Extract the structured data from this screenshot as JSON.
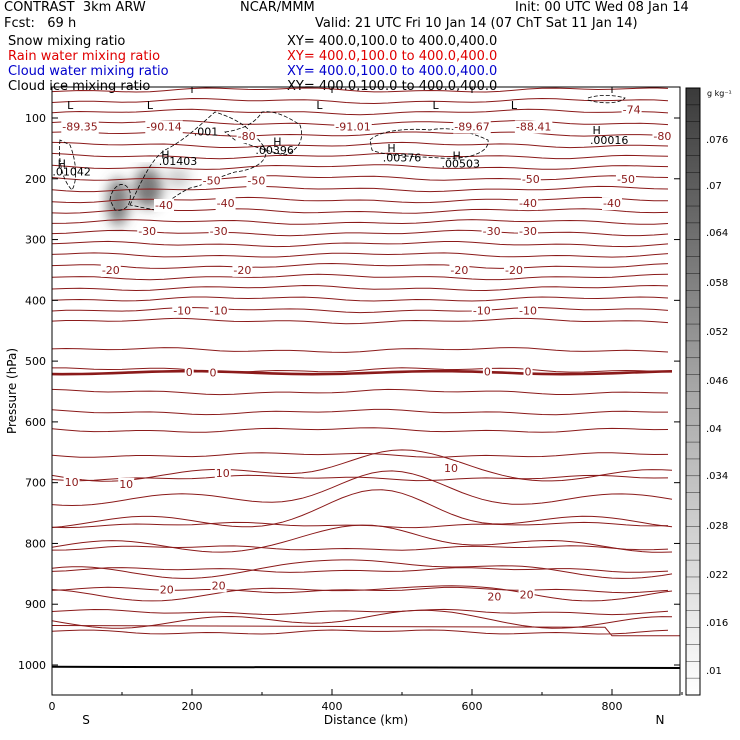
{
  "header": {
    "line1_left": "CONTRAST  3km ARW",
    "line1_mid": "NCAR/MMM",
    "line1_right": "Init: 00 UTC Wed 08 Jan 14",
    "line2_left": "Fcst:   69 h",
    "line2_right": "Valid: 21 UTC Fri 10 Jan 14 (07 ChT Sat 11 Jan 14)",
    "fields": [
      {
        "label": "Snow mixing ratio",
        "xy": "XY= 400.0,100.0 to 400.0,400.0",
        "color": "#000000"
      },
      {
        "label": "Rain water mixing ratio",
        "xy": "XY= 400.0,100.0 to 400.0,400.0",
        "color": "#e00000"
      },
      {
        "label": "Cloud water mixing ratio",
        "xy": "XY= 400.0,100.0 to 400.0,400.0",
        "color": "#0000cc"
      },
      {
        "label": "Cloud ice mixing ratio",
        "xy": "XY= 400.0,100.0 to 400.0,400.0",
        "color": "#000000"
      }
    ]
  },
  "chart_data": {
    "type": "contour",
    "xlabel": "Distance (km)",
    "ylabel": "Pressure (hPa)",
    "xlim": [
      0,
      900
    ],
    "ylim": [
      1050,
      50
    ],
    "x_ticks": [
      0,
      200,
      400,
      600,
      800
    ],
    "y_ticks": [
      100,
      200,
      300,
      400,
      500,
      600,
      700,
      800,
      900,
      1000
    ],
    "x_end_labels": {
      "left": "S",
      "right": "N"
    },
    "colorbar": {
      "units": "g kg⁻¹",
      "ticks": [
        ".076",
        ".07",
        ".064",
        ".058",
        ".052",
        ".046",
        ".04",
        ".034",
        ".028",
        ".022",
        ".016",
        ".01"
      ]
    },
    "contour_color": "#8b1a1a",
    "contour_labels": [
      {
        "text": "-89.35",
        "x": 40,
        "p": 114
      },
      {
        "text": "-90.14",
        "x": 160,
        "p": 114
      },
      {
        "text": "-91.01",
        "x": 430,
        "p": 114
      },
      {
        "text": "-89.67",
        "x": 600,
        "p": 114
      },
      {
        "text": "-88.41",
        "x": 688,
        "p": 114
      },
      {
        "text": "-74",
        "x": 828,
        "p": 86
      },
      {
        "text": "-80",
        "x": 278,
        "p": 130
      },
      {
        "text": "-80",
        "x": 872,
        "p": 130
      },
      {
        "text": ".001",
        "x": 220,
        "p": 122
      },
      {
        "text": ".00396",
        "x": 318,
        "p": 153
      },
      {
        "text": ".00376",
        "x": 500,
        "p": 165
      },
      {
        "text": ".00503",
        "x": 584,
        "p": 175
      },
      {
        "text": ".00016",
        "x": 796,
        "p": 136
      },
      {
        "text": ".01403",
        "x": 180,
        "p": 171
      },
      {
        "text": ".01042",
        "x": 28,
        "p": 188
      },
      {
        "text": "-50",
        "x": 228,
        "p": 203
      },
      {
        "text": "-50",
        "x": 292,
        "p": 203
      },
      {
        "text": "-50",
        "x": 684,
        "p": 200
      },
      {
        "text": "-50",
        "x": 820,
        "p": 200
      },
      {
        "text": "-40",
        "x": 160,
        "p": 243
      },
      {
        "text": "-40",
        "x": 248,
        "p": 240
      },
      {
        "text": "-40",
        "x": 680,
        "p": 240
      },
      {
        "text": "-40",
        "x": 800,
        "p": 240
      },
      {
        "text": "-30",
        "x": 136,
        "p": 286
      },
      {
        "text": "-30",
        "x": 238,
        "p": 286
      },
      {
        "text": "-30",
        "x": 628,
        "p": 286
      },
      {
        "text": "-30",
        "x": 680,
        "p": 286
      },
      {
        "text": "-20",
        "x": 84,
        "p": 350
      },
      {
        "text": "-20",
        "x": 272,
        "p": 350
      },
      {
        "text": "-20",
        "x": 582,
        "p": 350
      },
      {
        "text": "-20",
        "x": 660,
        "p": 350
      },
      {
        "text": "-10",
        "x": 186,
        "p": 417
      },
      {
        "text": "-10",
        "x": 238,
        "p": 417
      },
      {
        "text": "-10",
        "x": 614,
        "p": 417
      },
      {
        "text": "-10",
        "x": 680,
        "p": 417
      },
      {
        "text": "0",
        "x": 196,
        "p": 518
      },
      {
        "text": "0",
        "x": 230,
        "p": 519
      },
      {
        "text": "0",
        "x": 622,
        "p": 517
      },
      {
        "text": "0",
        "x": 680,
        "p": 517
      },
      {
        "text": "10",
        "x": 28,
        "p": 699
      },
      {
        "text": "10",
        "x": 106,
        "p": 702
      },
      {
        "text": "10",
        "x": 244,
        "p": 684
      },
      {
        "text": "10",
        "x": 570,
        "p": 676
      },
      {
        "text": "20",
        "x": 164,
        "p": 876
      },
      {
        "text": "20",
        "x": 238,
        "p": 869
      },
      {
        "text": "20",
        "x": 632,
        "p": 887
      },
      {
        "text": "20",
        "x": 678,
        "p": 884
      },
      {
        "text": "H",
        "x": 14,
        "p": 175
      },
      {
        "text": "H",
        "x": 162,
        "p": 160
      },
      {
        "text": "H",
        "x": 322,
        "p": 139
      },
      {
        "text": "H",
        "x": 485,
        "p": 149
      },
      {
        "text": "H",
        "x": 578,
        "p": 162
      },
      {
        "text": "H",
        "x": 778,
        "p": 120
      },
      {
        "text": "L",
        "x": 26,
        "p": 79
      },
      {
        "text": "L",
        "x": 140,
        "p": 79
      },
      {
        "text": "L",
        "x": 382,
        "p": 79
      },
      {
        "text": "L",
        "x": 548,
        "p": 79
      },
      {
        "text": "L",
        "x": 660,
        "p": 79
      }
    ],
    "contour_levels_approx": [
      "-89",
      "-80",
      "-74",
      "-50",
      "-40",
      "-30",
      "-20",
      "-10",
      "0",
      "10",
      "20"
    ]
  }
}
